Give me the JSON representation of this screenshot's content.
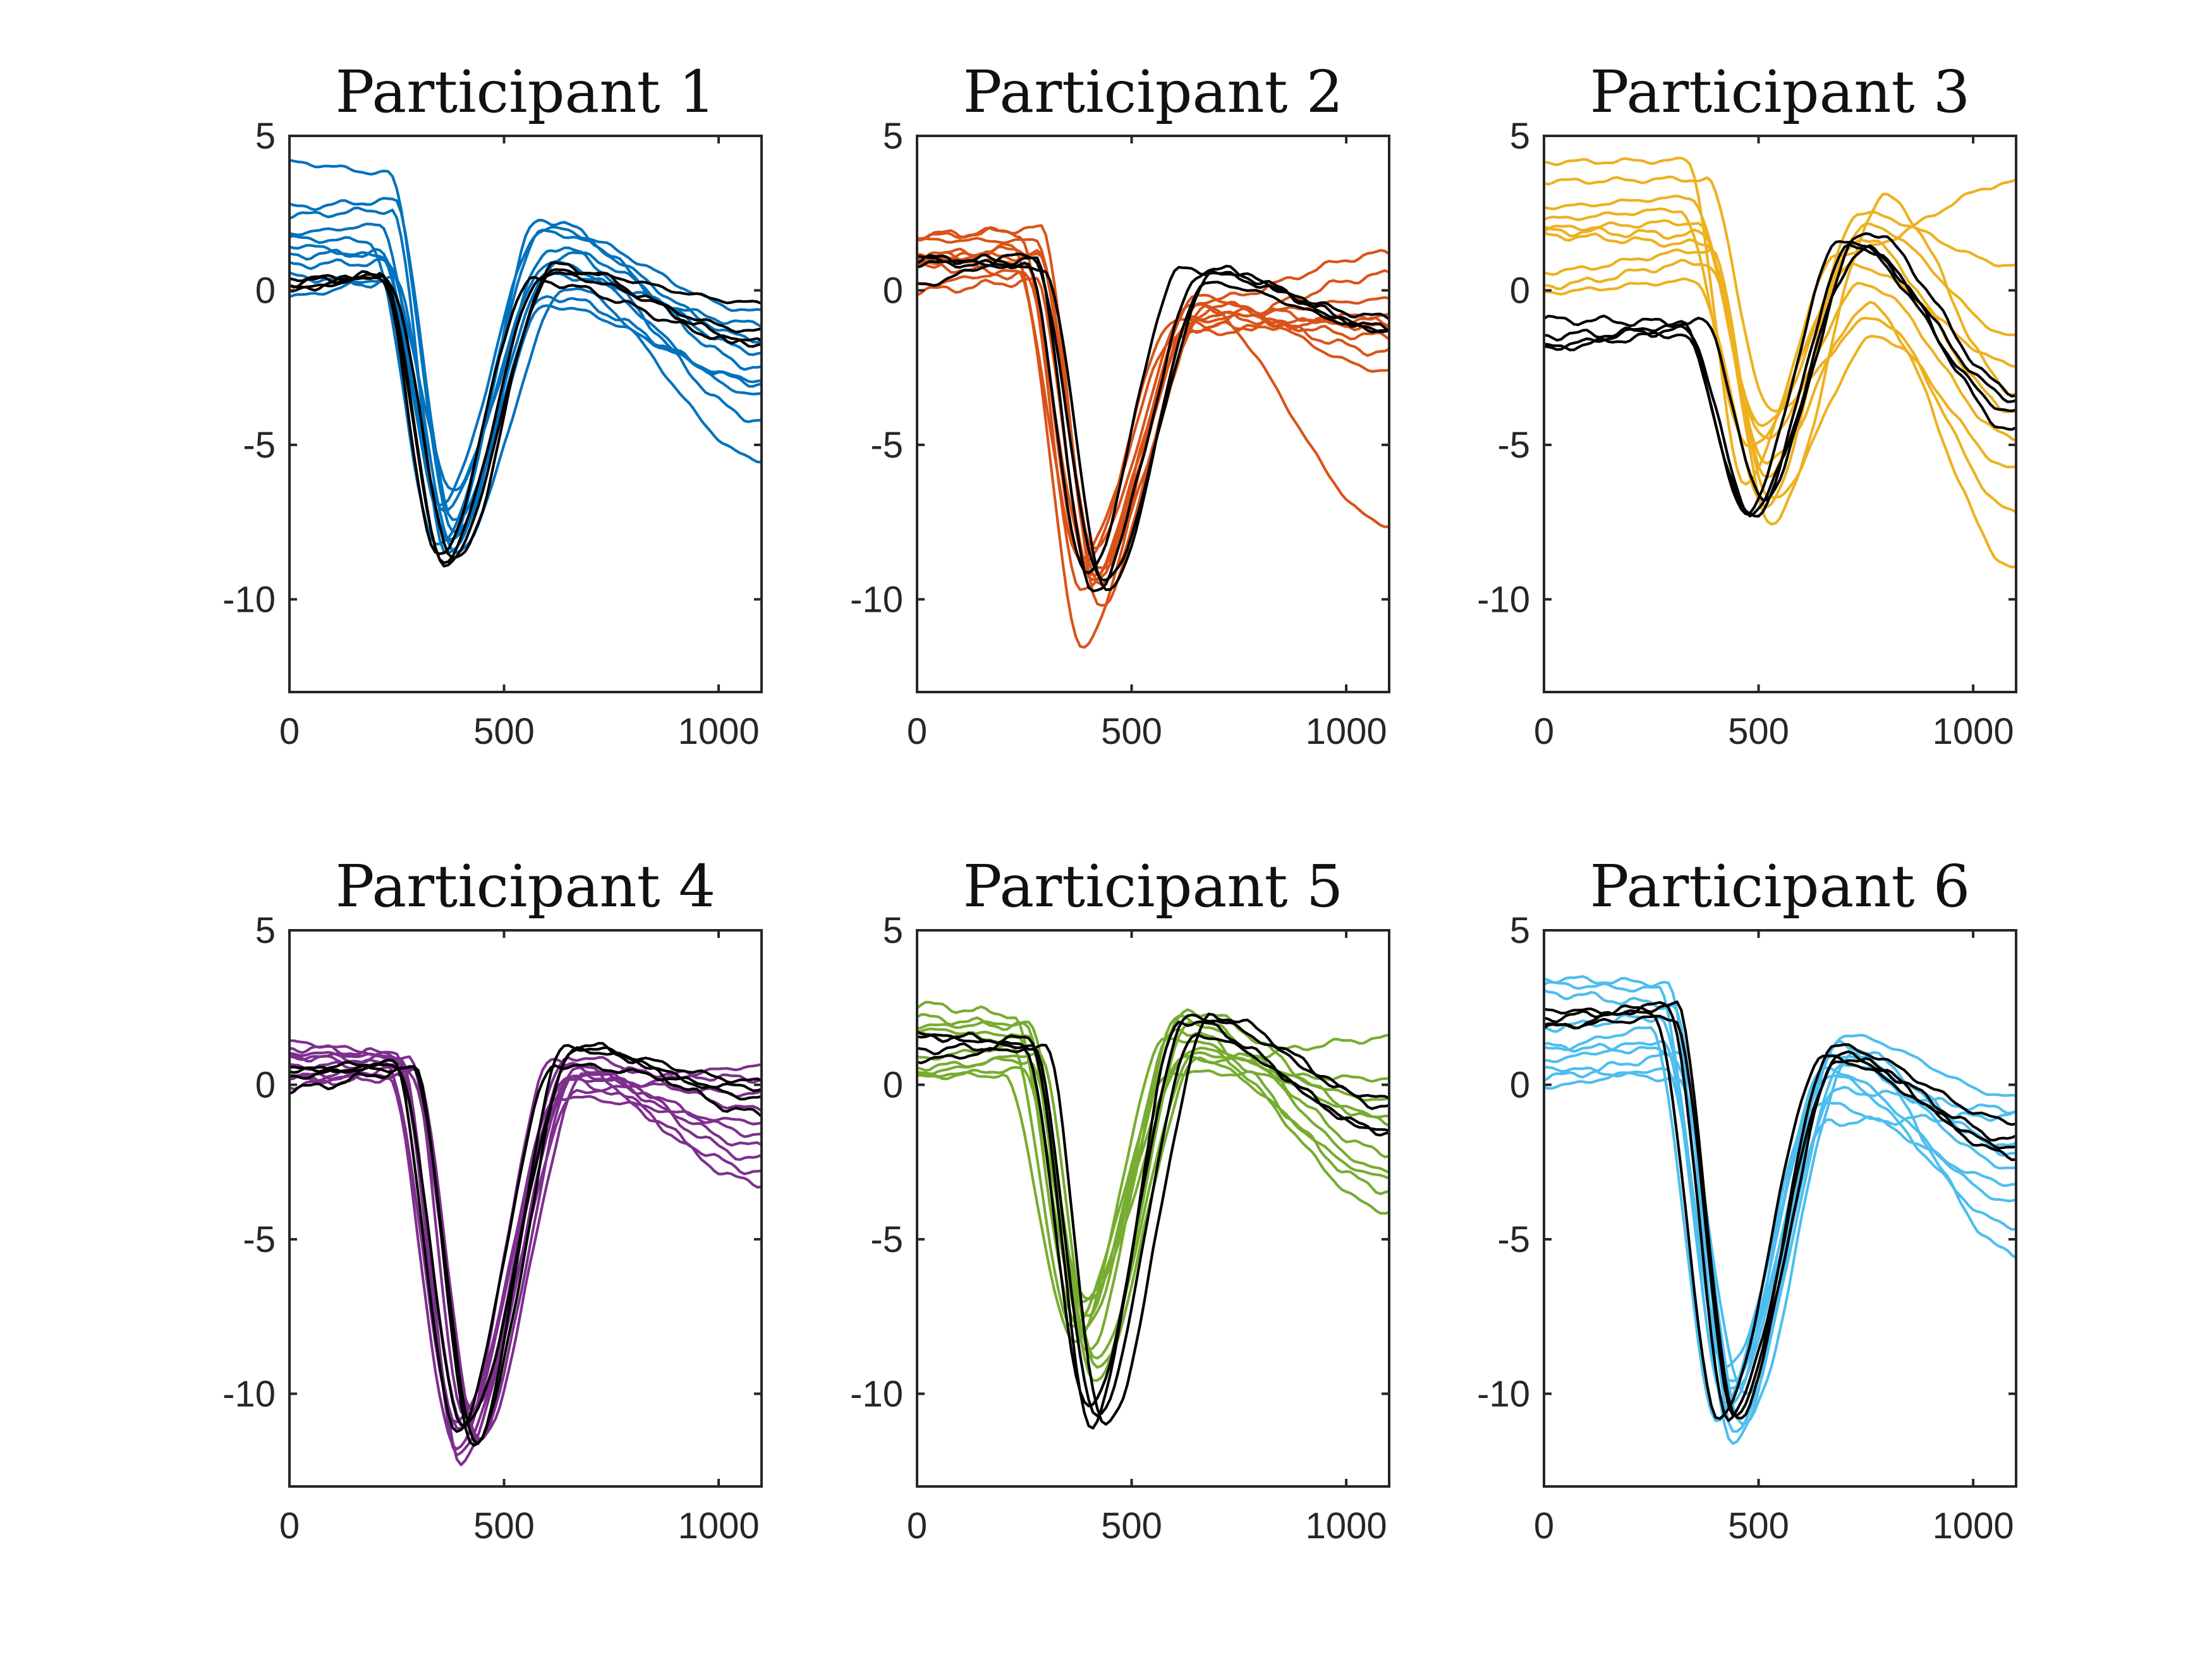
{
  "chart_data": [
    {
      "type": "line",
      "title": "Participant 1",
      "color": "#0072BD",
      "xlim": [
        0,
        1100
      ],
      "ylim": [
        -13,
        5
      ],
      "xticks": [
        0,
        500,
        1000
      ],
      "yticks": [
        5,
        0,
        -5,
        -10
      ],
      "xlabel": "",
      "ylabel": "",
      "legend": "none",
      "reference": {
        "color": "#000000",
        "count": 4,
        "peak_ms": 378,
        "trough": -8.8,
        "pre": 0.7,
        "rebound": 0.6,
        "late": -1.1
      },
      "trials": {
        "count": 10,
        "peak_ms": 370,
        "trough": [
          -8.0,
          -8.6,
          -6.4,
          -7.8,
          -8.3,
          -7.1,
          -8.5,
          -7.4,
          -6.9,
          -8.1
        ],
        "pre": [
          1.2,
          2.6,
          0.9,
          3.8,
          1.6,
          2.1,
          0.4,
          2.9,
          1.1,
          0.2
        ],
        "rebound": [
          2.3,
          0.5,
          1.4,
          -0.5,
          1.9,
          0.9,
          0.1,
          1.2,
          2.0,
          -0.2
        ],
        "late": [
          -2.5,
          -1.1,
          -4.2,
          -2.9,
          -1.6,
          -3.4,
          -5.5,
          -2.0,
          -0.7,
          -3.0
        ]
      }
    },
    {
      "type": "line",
      "title": "Participant 2",
      "color": "#D95319",
      "xlim": [
        0,
        1100
      ],
      "ylim": [
        -13,
        5
      ],
      "xticks": [
        0,
        500,
        1000
      ],
      "yticks": [
        5,
        0,
        -5,
        -10
      ],
      "xlabel": "",
      "ylabel": "",
      "legend": "none",
      "reference": {
        "color": "#000000",
        "count": 4,
        "peak_ms": 425,
        "trough": -9.6,
        "pre": 0.9,
        "rebound": 0.4,
        "late": -0.6
      },
      "trials": {
        "count": 10,
        "peak_ms": 405,
        "trough": [
          -9.0,
          -9.8,
          -11.5,
          -8.6,
          -9.4,
          -10.2,
          -8.9,
          -9.6,
          -9.2,
          -8.3
        ],
        "pre": [
          1.1,
          1.9,
          0.6,
          1.4,
          0.3,
          2.0,
          0.9,
          1.3,
          0.5,
          1.6
        ],
        "rebound": [
          -0.5,
          -1.1,
          -0.2,
          -1.4,
          -0.8,
          -0.3,
          -1.0,
          -0.6,
          -1.2,
          -0.4
        ],
        "late": [
          -1.2,
          0.5,
          -2.6,
          -0.8,
          -1.5,
          1.2,
          -0.3,
          -2.0,
          -1.0,
          -7.6
        ]
      }
    },
    {
      "type": "line",
      "title": "Participant 3",
      "color": "#EDB120",
      "xlim": [
        0,
        1100
      ],
      "ylim": [
        -13,
        5
      ],
      "xticks": [
        0,
        500,
        1000
      ],
      "yticks": [
        5,
        0,
        -5,
        -10
      ],
      "xlabel": "",
      "ylabel": "",
      "legend": "none",
      "reference": {
        "color": "#000000",
        "count": 4,
        "peak_ms": 500,
        "trough": -7.0,
        "pre": -1.2,
        "rebound": 1.7,
        "late": -4.0
      },
      "trials": {
        "count": 10,
        "peak_ms": 500,
        "trough": [
          -7.5,
          -6.2,
          -5.6,
          -4.4,
          -6.8,
          -5.1,
          -7.0,
          -3.9,
          -6.0,
          -4.8
        ],
        "pre": [
          1.8,
          4.2,
          0.9,
          3.0,
          1.3,
          2.6,
          0.3,
          3.6,
          1.5,
          2.2
        ],
        "rebound": [
          3.0,
          1.2,
          -0.5,
          2.1,
          -1.5,
          0.8,
          2.5,
          -0.9,
          1.7,
          0.2
        ],
        "late": [
          -3.3,
          3.5,
          -9.0,
          -1.5,
          -5.8,
          -2.4,
          0.8,
          -7.2,
          -3.9,
          -4.8
        ]
      }
    },
    {
      "type": "line",
      "title": "Participant 4",
      "color": "#7E2F8E",
      "xlim": [
        0,
        1100
      ],
      "ylim": [
        -13,
        5
      ],
      "xticks": [
        0,
        500,
        1000
      ],
      "yticks": [
        5,
        0,
        -5,
        -10
      ],
      "xlabel": "",
      "ylabel": "",
      "legend": "none",
      "reference": {
        "color": "#000000",
        "count": 4,
        "peak_ms": 420,
        "trough": -11.3,
        "pre": 0.5,
        "rebound": 1.0,
        "late": -0.5
      },
      "trials": {
        "count": 10,
        "peak_ms": 420,
        "trough": [
          -12.0,
          -11.6,
          -10.8,
          -11.2,
          -12.2,
          -10.5,
          -11.0,
          -11.8,
          -10.9,
          -11.4
        ],
        "pre": [
          1.0,
          0.6,
          0.9,
          0.3,
          0.8,
          0.5,
          1.0,
          0.2,
          0.7,
          0.4
        ],
        "rebound": [
          0.6,
          0.3,
          -0.2,
          0.9,
          0.1,
          0.5,
          -0.4,
          0.8,
          0.2,
          0.4
        ],
        "late": [
          -2.4,
          -1.6,
          0.6,
          -0.8,
          -2.8,
          0.2,
          -1.2,
          -3.2,
          -0.3,
          -2.0
        ]
      }
    },
    {
      "type": "line",
      "title": "Participant 5",
      "color": "#77AC30",
      "xlim": [
        0,
        1100
      ],
      "ylim": [
        -13,
        5
      ],
      "xticks": [
        0,
        500,
        1000
      ],
      "yticks": [
        5,
        0,
        -5,
        -10
      ],
      "xlabel": "",
      "ylabel": "",
      "legend": "none",
      "reference": {
        "color": "#000000",
        "count": 4,
        "peak_ms": 430,
        "trough": -10.8,
        "pre": 1.4,
        "rebound": 2.0,
        "late": -1.2
      },
      "trials": {
        "count": 10,
        "peak_ms": 390,
        "trough": [
          -8.0,
          -7.4,
          -9.2,
          -8.6,
          -6.9,
          -7.8,
          -9.6,
          -8.3,
          -7.1,
          -8.9
        ],
        "pre": [
          2.3,
          1.5,
          0.8,
          1.9,
          0.5,
          1.2,
          2.0,
          0.3,
          1.6,
          1.0
        ],
        "rebound": [
          2.4,
          1.8,
          0.8,
          2.2,
          1.2,
          0.4,
          2.0,
          1.5,
          0.9,
          1.0
        ],
        "late": [
          -1.2,
          -3.4,
          1.5,
          -2.2,
          -4.1,
          0.2,
          -2.8,
          -1.0,
          -3.0,
          -0.5
        ]
      }
    },
    {
      "type": "line",
      "title": "Participant 6",
      "color": "#4DBEEE",
      "xlim": [
        0,
        1100
      ],
      "ylim": [
        -13,
        5
      ],
      "xticks": [
        0,
        500,
        1000
      ],
      "yticks": [
        5,
        0,
        -5,
        -10
      ],
      "xlabel": "",
      "ylabel": "",
      "legend": "none",
      "reference": {
        "color": "#000000",
        "count": 4,
        "peak_ms": 440,
        "trough": -10.6,
        "pre": 2.4,
        "rebound": 1.0,
        "late": -1.6
      },
      "trials": {
        "count": 10,
        "peak_ms": 435,
        "trough": [
          -11.7,
          -10.2,
          -9.6,
          -10.8,
          -11.0,
          -9.9,
          -10.5,
          -9.2,
          -11.3,
          -10.0
        ],
        "pre": [
          2.6,
          3.1,
          0.5,
          1.8,
          0.9,
          2.2,
          1.4,
          3.3,
          1.1,
          0.2
        ],
        "rebound": [
          1.3,
          0.3,
          1.6,
          -0.6,
          0.9,
          -1.2,
          0.5,
          1.0,
          -0.2,
          0.7
        ],
        "late": [
          -2.2,
          -4.6,
          -0.4,
          -3.2,
          -5.5,
          -1.0,
          -3.8,
          -2.0,
          -0.8,
          -2.7
        ]
      }
    }
  ]
}
